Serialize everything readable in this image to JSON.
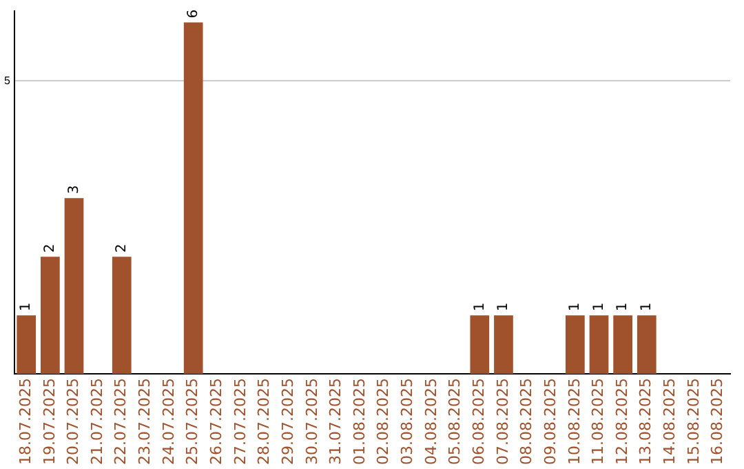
{
  "chart_data": {
    "type": "bar",
    "categories": [
      "18.07.2025",
      "19.07.2025",
      "20.07.2025",
      "21.07.2025",
      "22.07.2025",
      "23.07.2025",
      "24.07.2025",
      "25.07.2025",
      "26.07.2025",
      "27.07.2025",
      "28.07.2025",
      "29.07.2025",
      "30.07.2025",
      "31.07.2025",
      "01.08.2025",
      "02.08.2025",
      "03.08.2025",
      "04.08.2025",
      "05.08.2025",
      "06.08.2025",
      "07.08.2025",
      "08.08.2025",
      "09.08.2025",
      "10.08.2025",
      "11.08.2025",
      "12.08.2025",
      "13.08.2025",
      "14.08.2025",
      "15.08.2025",
      "16.08.2025"
    ],
    "values": [
      1,
      2,
      3,
      0,
      2,
      0,
      0,
      6,
      0,
      0,
      0,
      0,
      0,
      0,
      0,
      0,
      0,
      0,
      0,
      1,
      1,
      0,
      0,
      1,
      1,
      1,
      1,
      0,
      0,
      0
    ],
    "value_labels": [
      "1",
      "2",
      "3",
      null,
      "2",
      null,
      null,
      "6",
      null,
      null,
      null,
      null,
      null,
      null,
      null,
      null,
      null,
      null,
      null,
      "1",
      "1",
      null,
      null,
      "1",
      "1",
      "1",
      "1",
      null,
      null,
      null
    ],
    "color": "#a0522d",
    "ylim": [
      0,
      6.2
    ],
    "yticks": [
      5
    ],
    "grid": "y",
    "legend": false
  }
}
